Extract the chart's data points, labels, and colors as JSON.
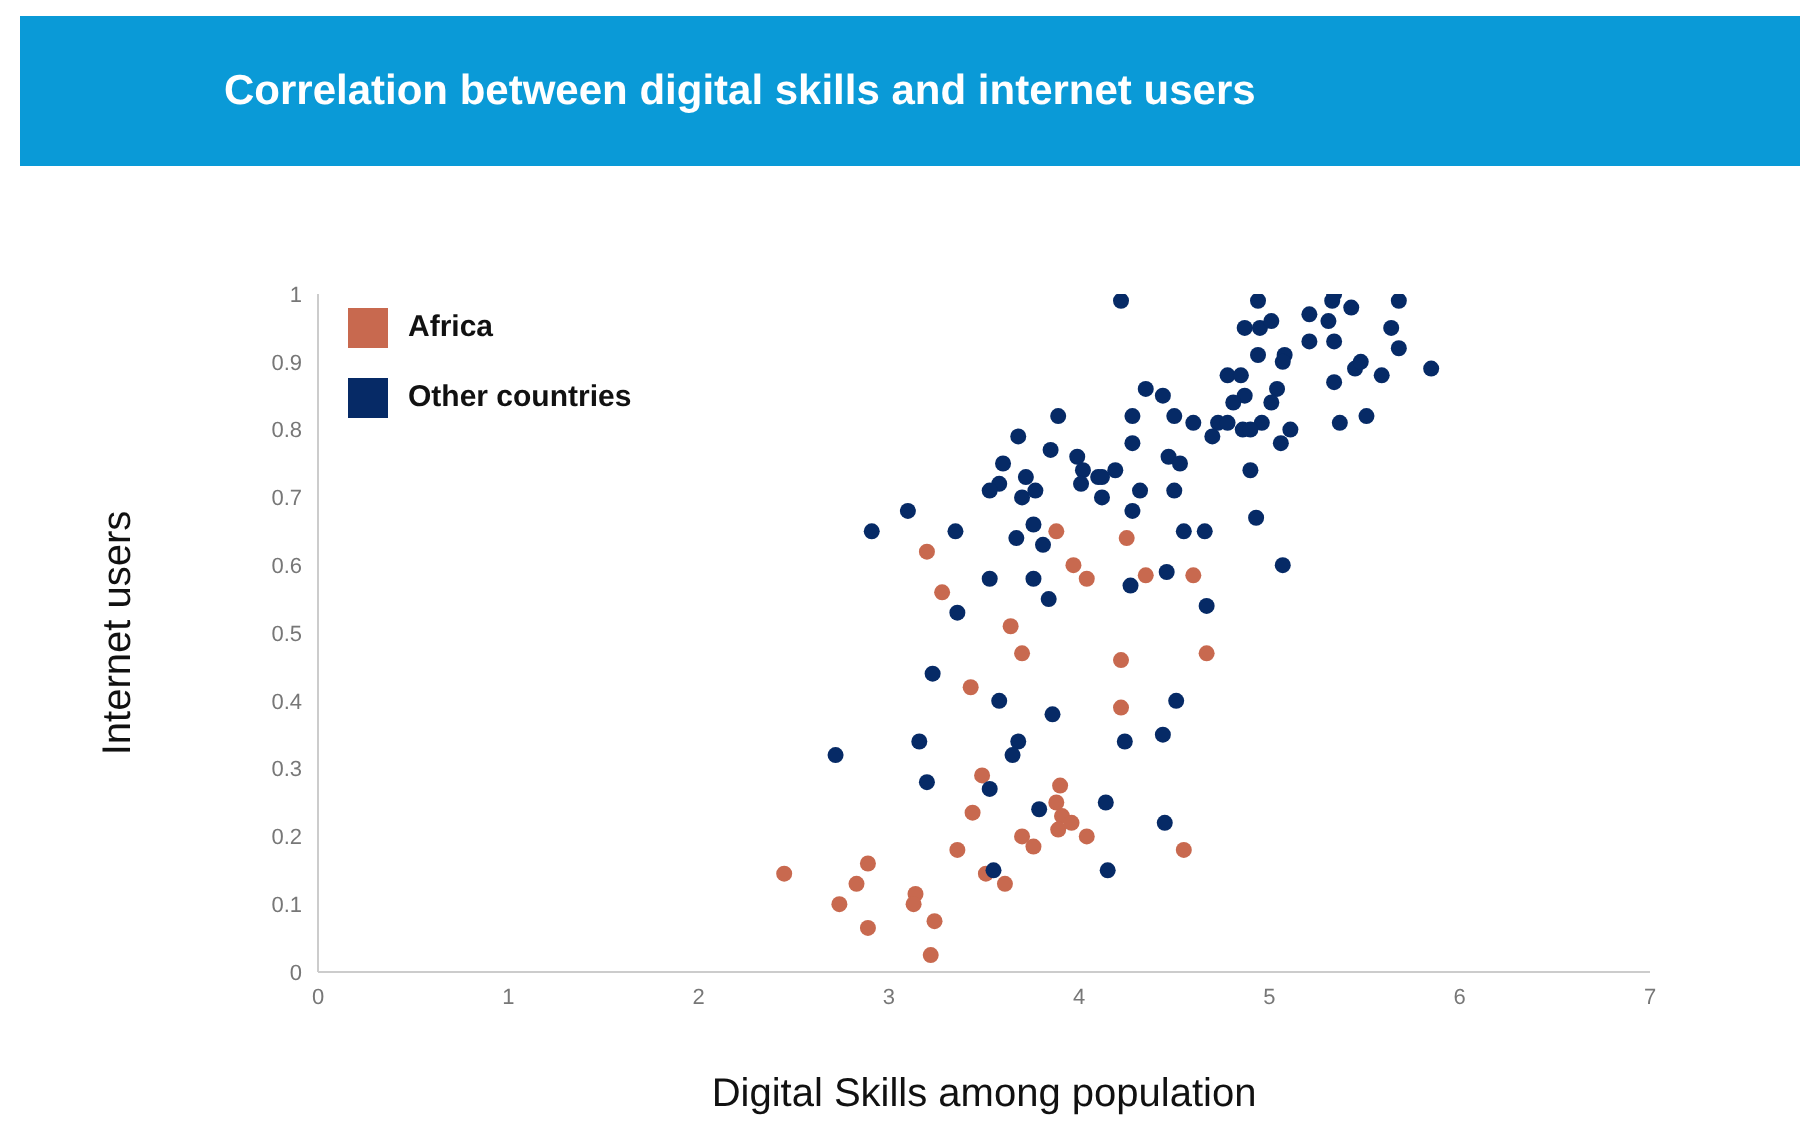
{
  "chart_data": {
    "type": "scatter",
    "title": "Correlation between digital skills and internet users",
    "xlabel": "Digital Skills among population",
    "ylabel": "Internet users",
    "xlim": [
      0,
      7
    ],
    "xticks": [
      0,
      1,
      2,
      3,
      4,
      5,
      6,
      7
    ],
    "ylim": [
      0,
      1
    ],
    "yticks": [
      0,
      0.1,
      0.2,
      0.3,
      0.4,
      0.5,
      0.6,
      0.7,
      0.8,
      0.9,
      1
    ],
    "grid": false,
    "legend": "top left",
    "marker": "circle",
    "series": [
      {
        "name": "Africa",
        "color": "#c8694f",
        "x": [
          2.45,
          2.74,
          2.83,
          2.89,
          2.89,
          3.14,
          3.13,
          3.24,
          3.22,
          3.2,
          3.28,
          3.43,
          3.36,
          3.44,
          3.49,
          3.51,
          3.61,
          3.64,
          3.7,
          3.7,
          3.76,
          3.88,
          3.9,
          3.88,
          3.91,
          3.89,
          3.96,
          3.97,
          4.04,
          4.04,
          4.22,
          4.22,
          4.25,
          4.35,
          4.6,
          4.67,
          4.55
        ],
        "values": [
          0.145,
          0.1,
          0.13,
          0.16,
          0.065,
          0.115,
          0.1,
          0.075,
          0.025,
          0.62,
          0.56,
          0.42,
          0.18,
          0.235,
          0.29,
          0.145,
          0.13,
          0.51,
          0.47,
          0.2,
          0.185,
          0.65,
          0.275,
          0.25,
          0.23,
          0.21,
          0.22,
          0.6,
          0.58,
          0.2,
          0.46,
          0.39,
          0.64,
          0.585,
          0.585,
          0.47,
          0.18
        ]
      },
      {
        "name": "Other countries",
        "color": "#062a66",
        "x": [
          4.22,
          4.35,
          4.28,
          3.89,
          3.68,
          3.85,
          4.28,
          3.99,
          3.6,
          4.02,
          4.1,
          4.12,
          4.19,
          3.72,
          3.58,
          3.53,
          3.7,
          3.77,
          4.01,
          4.12,
          4.32,
          4.28,
          3.1,
          2.91,
          3.35,
          3.76,
          3.67,
          3.81,
          3.53,
          3.76,
          3.84,
          3.36,
          4.27,
          3.23,
          3.58,
          3.86,
          3.68,
          3.65,
          3.53,
          3.79,
          3.55,
          3.2,
          3.16,
          2.72,
          4.44,
          4.51,
          4.24,
          4.45,
          4.15,
          4.14,
          4.94,
          5.34,
          5.33,
          5.43,
          5.68,
          5.21,
          5.31,
          4.87,
          4.95,
          5.01,
          5.64,
          5.34,
          5.68,
          5.21,
          4.94,
          5.08,
          5.07,
          5.45,
          5.48,
          5.85,
          5.59,
          4.78,
          4.85,
          5.34,
          5.04,
          4.44,
          4.87,
          4.81,
          5.01,
          4.5,
          4.73,
          4.78,
          4.96,
          4.6,
          4.86,
          4.9,
          5.37,
          5.51,
          5.11,
          4.7,
          5.06,
          4.47,
          4.53,
          4.5,
          4.9,
          4.55,
          4.66,
          4.93,
          4.46,
          5.07,
          4.67
        ],
        "values": [
          0.99,
          0.86,
          0.82,
          0.82,
          0.79,
          0.77,
          0.78,
          0.76,
          0.75,
          0.74,
          0.73,
          0.73,
          0.74,
          0.73,
          0.72,
          0.71,
          0.7,
          0.71,
          0.72,
          0.7,
          0.71,
          0.68,
          0.68,
          0.65,
          0.65,
          0.66,
          0.64,
          0.63,
          0.58,
          0.58,
          0.55,
          0.53,
          0.57,
          0.44,
          0.4,
          0.38,
          0.34,
          0.32,
          0.27,
          0.24,
          0.15,
          0.28,
          0.34,
          0.32,
          0.35,
          0.4,
          0.34,
          0.22,
          0.15,
          0.25,
          0.99,
          1,
          0.99,
          0.98,
          0.99,
          0.97,
          0.96,
          0.95,
          0.95,
          0.96,
          0.95,
          0.93,
          0.92,
          0.93,
          0.91,
          0.91,
          0.9,
          0.89,
          0.9,
          0.89,
          0.88,
          0.88,
          0.88,
          0.87,
          0.86,
          0.85,
          0.85,
          0.84,
          0.84,
          0.82,
          0.81,
          0.81,
          0.81,
          0.81,
          0.8,
          0.8,
          0.81,
          0.82,
          0.8,
          0.79,
          0.78,
          0.76,
          0.75,
          0.71,
          0.74,
          0.65,
          0.65,
          0.67,
          0.59,
          0.6,
          0.54
        ]
      }
    ]
  }
}
